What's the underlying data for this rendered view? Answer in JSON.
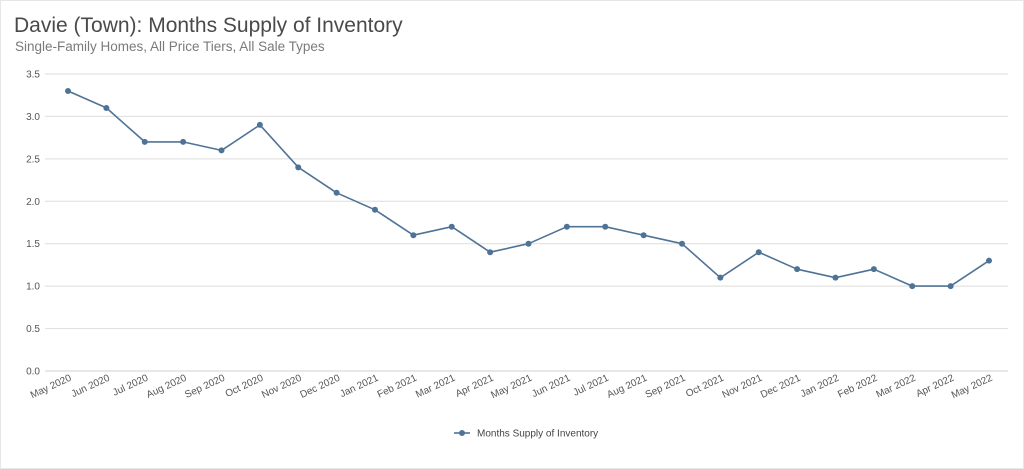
{
  "title": "Davie (Town): Months Supply of Inventory",
  "subtitle": "Single-Family Homes, All Price Tiers, All Sale Types",
  "colors": {
    "series": "#4f7396",
    "grid": "#dedede",
    "axis": "#d0d0d0"
  },
  "chart_data": {
    "type": "line",
    "categories": [
      "May 2020",
      "Jun 2020",
      "Jul 2020",
      "Aug 2020",
      "Sep 2020",
      "Oct 2020",
      "Nov 2020",
      "Dec 2020",
      "Jan 2021",
      "Feb 2021",
      "Mar 2021",
      "Apr 2021",
      "May 2021",
      "Jun 2021",
      "Jul 2021",
      "Aug 2021",
      "Sep 2021",
      "Oct 2021",
      "Nov 2021",
      "Dec 2021",
      "Jan 2022",
      "Feb 2022",
      "Mar 2022",
      "Apr 2022",
      "May 2022"
    ],
    "series": [
      {
        "name": "Months Supply of Inventory",
        "values": [
          3.3,
          3.1,
          2.7,
          2.7,
          2.6,
          2.9,
          2.4,
          2.1,
          1.9,
          1.6,
          1.7,
          1.4,
          1.5,
          1.7,
          1.7,
          1.6,
          1.5,
          1.1,
          1.4,
          1.2,
          1.1,
          1.2,
          1.0,
          1.0,
          1.3
        ]
      }
    ],
    "yticks": [
      "0.0",
      "0.5",
      "1.0",
      "1.5",
      "2.0",
      "2.5",
      "3.0",
      "3.5"
    ],
    "ylim": [
      0,
      3.5
    ],
    "grid": true,
    "legend": "bottom-center"
  }
}
